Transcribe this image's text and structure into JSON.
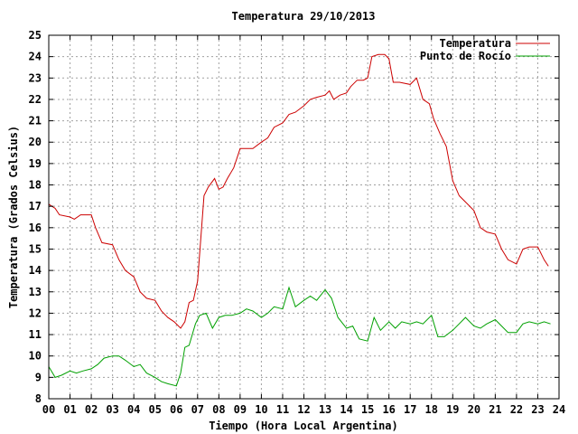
{
  "chart_data": {
    "type": "line",
    "title": "Temperatura 29/10/2013",
    "xlabel": "Tiempo (Hora Local Argentina)",
    "ylabel": "Temperatura (Grados Celsius)",
    "xlim": [
      0,
      24
    ],
    "ylim": [
      8,
      25
    ],
    "xticks": [
      0,
      1,
      2,
      3,
      4,
      5,
      6,
      7,
      8,
      9,
      10,
      11,
      12,
      13,
      14,
      15,
      16,
      17,
      18,
      19,
      20,
      21,
      22,
      23,
      24
    ],
    "xtick_labels": [
      "00",
      "01",
      "02",
      "03",
      "04",
      "05",
      "06",
      "07",
      "08",
      "09",
      "10",
      "11",
      "12",
      "13",
      "14",
      "15",
      "16",
      "17",
      "18",
      "19",
      "20",
      "21",
      "22",
      "23",
      "24"
    ],
    "yticks": [
      8,
      9,
      10,
      11,
      12,
      13,
      14,
      15,
      16,
      17,
      18,
      19,
      20,
      21,
      22,
      23,
      24,
      25
    ],
    "grid": true,
    "legend_position": "top-right",
    "series": [
      {
        "name": "Temperatura",
        "color": "#cc0000",
        "x": [
          0,
          0.3,
          0.5,
          1.0,
          1.2,
          1.5,
          2.0,
          2.2,
          2.5,
          3.0,
          3.3,
          3.6,
          4.0,
          4.3,
          4.6,
          5.0,
          5.3,
          5.6,
          5.9,
          6.2,
          6.4,
          6.6,
          6.8,
          7.0,
          7.3,
          7.5,
          7.8,
          8.0,
          8.2,
          8.4,
          8.7,
          9.0,
          9.3,
          9.6,
          10.0,
          10.3,
          10.6,
          11.0,
          11.3,
          11.6,
          12.0,
          12.3,
          12.6,
          13.0,
          13.2,
          13.4,
          13.7,
          14.0,
          14.2,
          14.5,
          14.8,
          15.0,
          15.2,
          15.5,
          15.8,
          16.0,
          16.2,
          16.5,
          17.0,
          17.3,
          17.6,
          17.9,
          18.1,
          18.4,
          18.7,
          19.0,
          19.3,
          19.6,
          20.0,
          20.3,
          20.6,
          21.0,
          21.3,
          21.6,
          22.0,
          22.3,
          22.6,
          23.0,
          23.3,
          23.5
        ],
        "y": [
          17.1,
          16.9,
          16.6,
          16.5,
          16.4,
          16.6,
          16.6,
          16.0,
          15.3,
          15.2,
          14.5,
          14.0,
          13.7,
          13.0,
          12.7,
          12.6,
          12.1,
          11.8,
          11.6,
          11.3,
          11.6,
          12.5,
          12.6,
          13.5,
          17.5,
          17.9,
          18.3,
          17.8,
          17.9,
          18.3,
          18.8,
          19.7,
          19.7,
          19.7,
          20.0,
          20.2,
          20.7,
          20.9,
          21.3,
          21.4,
          21.7,
          22.0,
          22.1,
          22.2,
          22.4,
          22.0,
          22.2,
          22.3,
          22.6,
          22.9,
          22.9,
          23.0,
          24.0,
          24.1,
          24.1,
          23.9,
          22.8,
          22.8,
          22.7,
          23.0,
          22.0,
          21.8,
          21.1,
          20.4,
          19.8,
          18.2,
          17.5,
          17.2,
          16.8,
          16.0,
          15.8,
          15.7,
          15.0,
          14.5,
          14.3,
          15.0,
          15.1,
          15.1,
          14.5,
          14.2
        ]
      },
      {
        "name": "Punto de Rocío",
        "color": "#00a000",
        "x": [
          0,
          0.3,
          0.6,
          1.0,
          1.3,
          1.6,
          2.0,
          2.3,
          2.6,
          3.0,
          3.3,
          3.6,
          4.0,
          4.3,
          4.6,
          5.0,
          5.3,
          5.6,
          6.0,
          6.2,
          6.4,
          6.6,
          6.9,
          7.1,
          7.4,
          7.7,
          8.0,
          8.3,
          8.6,
          9.0,
          9.3,
          9.6,
          10.0,
          10.3,
          10.6,
          11.0,
          11.3,
          11.6,
          12.0,
          12.3,
          12.6,
          13.0,
          13.3,
          13.6,
          14.0,
          14.3,
          14.6,
          15.0,
          15.3,
          15.6,
          16.0,
          16.3,
          16.6,
          17.0,
          17.3,
          17.6,
          18.0,
          18.3,
          18.6,
          19.0,
          19.3,
          19.6,
          20.0,
          20.3,
          20.6,
          21.0,
          21.3,
          21.6,
          22.0,
          22.3,
          22.6,
          23.0,
          23.3,
          23.6
        ],
        "y": [
          9.5,
          9.0,
          9.1,
          9.3,
          9.2,
          9.3,
          9.4,
          9.6,
          9.9,
          10.0,
          10.0,
          9.8,
          9.5,
          9.6,
          9.2,
          9.0,
          8.8,
          8.7,
          8.6,
          9.2,
          10.4,
          10.5,
          11.5,
          11.9,
          12.0,
          11.3,
          11.8,
          11.9,
          11.9,
          12.0,
          12.2,
          12.1,
          11.8,
          12.0,
          12.3,
          12.2,
          13.2,
          12.3,
          12.6,
          12.8,
          12.6,
          13.1,
          12.7,
          11.8,
          11.3,
          11.4,
          10.8,
          10.7,
          11.8,
          11.2,
          11.6,
          11.3,
          11.6,
          11.5,
          11.6,
          11.5,
          11.9,
          10.9,
          10.9,
          11.2,
          11.5,
          11.8,
          11.4,
          11.3,
          11.5,
          11.7,
          11.4,
          11.1,
          11.1,
          11.5,
          11.6,
          11.5,
          11.6,
          11.5
        ]
      }
    ]
  }
}
